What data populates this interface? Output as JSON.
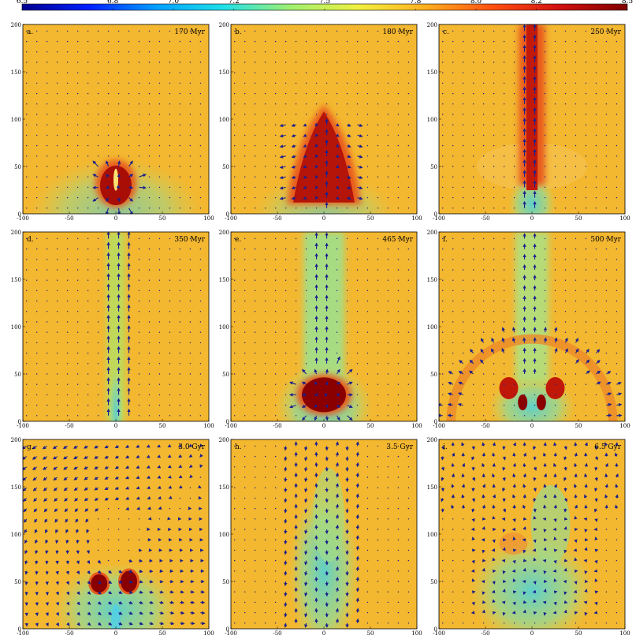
{
  "colorbar": {
    "ticks": [
      "6.5",
      "6.8",
      "7.0",
      "7.2",
      "7.5",
      "7.8",
      "8.0",
      "8.2",
      "8.5"
    ],
    "colormap": [
      "#00008f",
      "#0020ff",
      "#00a0ff",
      "#20e0e8",
      "#a0f070",
      "#f0f040",
      "#ffb020",
      "#ff5010",
      "#d01010",
      "#800000"
    ]
  },
  "colors": {
    "background": "#f3b730",
    "arrow": "#1a1f8c",
    "jet_core": "#b01208",
    "jet_edge": "#e85a1c",
    "cool": "#7fd6a8",
    "cool_core": "#3fc9e0"
  },
  "chart_data": [
    {
      "label": "a.",
      "time": "170 Myr",
      "type": "heatmap",
      "xlim": [
        -100,
        100
      ],
      "ylim": [
        0,
        200
      ],
      "xticks": [
        "-100",
        "-50",
        "0",
        "50",
        "100"
      ],
      "yticks": [
        "0",
        "50",
        "100",
        "150",
        "200"
      ]
    },
    {
      "label": "b.",
      "time": "180 Myr",
      "type": "heatmap",
      "xlim": [
        -100,
        100
      ],
      "ylim": [
        0,
        200
      ],
      "xticks": [
        "-100",
        "-50",
        "0",
        "50",
        "100"
      ],
      "yticks": [
        "0",
        "50",
        "100",
        "150",
        "200"
      ]
    },
    {
      "label": "c.",
      "time": "250 Myr",
      "type": "heatmap",
      "xlim": [
        -100,
        100
      ],
      "ylim": [
        0,
        200
      ],
      "xticks": [
        "-100",
        "-50",
        "0",
        "50",
        "100"
      ],
      "yticks": [
        "0",
        "50",
        "100",
        "150",
        "200"
      ]
    },
    {
      "label": "d.",
      "time": "350 Myr",
      "type": "heatmap",
      "xlim": [
        -100,
        100
      ],
      "ylim": [
        0,
        200
      ],
      "xticks": [
        "-100",
        "-50",
        "0",
        "50",
        "100"
      ],
      "yticks": [
        "0",
        "50",
        "100",
        "150",
        "200"
      ]
    },
    {
      "label": "e.",
      "time": "465 Myr",
      "type": "heatmap",
      "xlim": [
        -100,
        100
      ],
      "ylim": [
        0,
        200
      ],
      "xticks": [
        "-100",
        "-50",
        "0",
        "50",
        "100"
      ],
      "yticks": [
        "0",
        "50",
        "100",
        "150",
        "200"
      ]
    },
    {
      "label": "f.",
      "time": "500 Myr",
      "type": "heatmap",
      "xlim": [
        -100,
        100
      ],
      "ylim": [
        0,
        200
      ],
      "xticks": [
        "-100",
        "-50",
        "0",
        "50",
        "100"
      ],
      "yticks": [
        "0",
        "50",
        "100",
        "150",
        "200"
      ]
    },
    {
      "label": "g.",
      "time": "3.0 Gyr",
      "type": "heatmap",
      "xlim": [
        -100,
        100
      ],
      "ylim": [
        0,
        200
      ],
      "xticks": [
        "-100",
        "-50",
        "0",
        "50",
        "100"
      ],
      "yticks": [
        "0",
        "50",
        "100",
        "150",
        "200"
      ]
    },
    {
      "label": "h.",
      "time": "3.5 Gyr",
      "type": "heatmap",
      "xlim": [
        -100,
        100
      ],
      "ylim": [
        0,
        200
      ],
      "xticks": [
        "-100",
        "-50",
        "0",
        "50",
        "100"
      ],
      "yticks": [
        "0",
        "50",
        "100",
        "150",
        "200"
      ]
    },
    {
      "label": "i.",
      "time": "6.5 Gyr",
      "type": "heatmap",
      "xlim": [
        -100,
        100
      ],
      "ylim": [
        0,
        200
      ],
      "xticks": [
        "-100",
        "-50",
        "0",
        "50",
        "100"
      ],
      "yticks": [
        "0",
        "50",
        "100",
        "150",
        "200"
      ]
    }
  ]
}
